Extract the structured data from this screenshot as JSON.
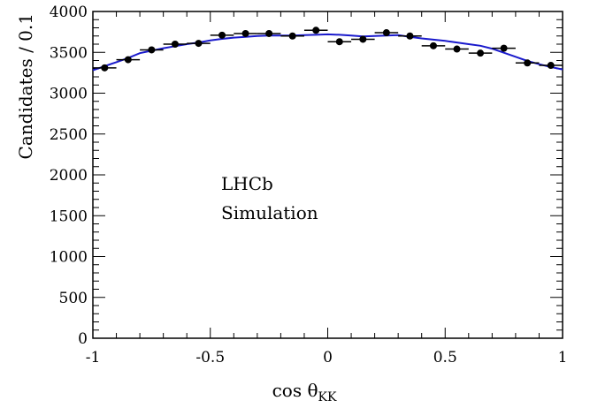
{
  "chart_data": {
    "type": "scatter",
    "xlabel_main": "cos θ",
    "xlabel_sub": "KK",
    "ylabel": "Candidates / 0.1",
    "annotation": [
      "LHCb",
      "Simulation"
    ],
    "xlim": [
      -1,
      1
    ],
    "ylim": [
      0,
      4000
    ],
    "x_ticks": [
      -1,
      -0.5,
      0,
      0.5,
      1
    ],
    "x_tick_labels": [
      "-1",
      "-0.5",
      "0",
      "0.5",
      "1"
    ],
    "y_ticks": [
      0,
      500,
      1000,
      1500,
      2000,
      2500,
      3000,
      3500,
      4000
    ],
    "y_tick_labels": [
      "0",
      "500",
      "1000",
      "1500",
      "2000",
      "2500",
      "3000",
      "3500",
      "4000"
    ],
    "x_bin_halfwidth": 0.05,
    "series": [
      {
        "kind": "points",
        "color": "#000000",
        "x": [
          -0.95,
          -0.85,
          -0.75,
          -0.65,
          -0.55,
          -0.45,
          -0.35,
          -0.25,
          -0.15,
          -0.05,
          0.05,
          0.15,
          0.25,
          0.35,
          0.45,
          0.55,
          0.65,
          0.75,
          0.85,
          0.95
        ],
        "y": [
          3310,
          3410,
          3530,
          3600,
          3610,
          3710,
          3730,
          3730,
          3700,
          3770,
          3630,
          3660,
          3740,
          3700,
          3580,
          3540,
          3490,
          3550,
          3370,
          3340
        ]
      },
      {
        "kind": "line",
        "color": "#1a1acc",
        "x": [
          -1.0,
          -0.95,
          -0.9,
          -0.85,
          -0.8,
          -0.75,
          -0.7,
          -0.65,
          -0.6,
          -0.55,
          -0.5,
          -0.45,
          -0.4,
          -0.35,
          -0.3,
          -0.25,
          -0.2,
          -0.15,
          -0.1,
          -0.05,
          0.0,
          0.05,
          0.1,
          0.15,
          0.2,
          0.25,
          0.3,
          0.35,
          0.4,
          0.45,
          0.5,
          0.55,
          0.6,
          0.65,
          0.7,
          0.75,
          0.8,
          0.85,
          0.9,
          0.95,
          1.0
        ],
        "y": [
          3280,
          3330,
          3380,
          3430,
          3490,
          3520,
          3550,
          3575,
          3600,
          3620,
          3645,
          3665,
          3680,
          3690,
          3700,
          3705,
          3705,
          3705,
          3710,
          3715,
          3720,
          3715,
          3705,
          3695,
          3700,
          3705,
          3710,
          3690,
          3670,
          3655,
          3640,
          3620,
          3600,
          3580,
          3545,
          3495,
          3445,
          3395,
          3355,
          3320,
          3290
        ]
      }
    ]
  }
}
